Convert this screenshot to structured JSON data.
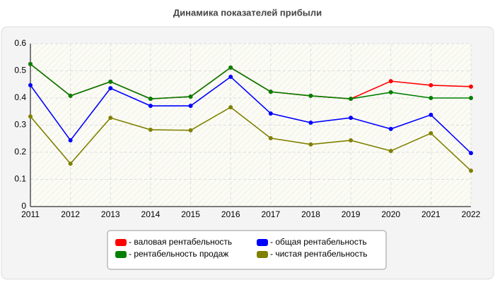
{
  "chart_data": {
    "type": "line",
    "title": "Динамика показателей прибыли",
    "x": [
      2011,
      2012,
      2013,
      2014,
      2015,
      2016,
      2017,
      2018,
      2019,
      2020,
      2021,
      2022
    ],
    "series": [
      {
        "name": "- валовая рентабельность",
        "color": "#ff0000",
        "values": [
          0.525,
          0.408,
          0.46,
          0.397,
          0.405,
          0.512,
          0.423,
          0.408,
          0.397,
          0.462,
          0.447,
          0.442
        ]
      },
      {
        "name": "- рентабельность продаж",
        "color": "#008000",
        "values": [
          0.525,
          0.408,
          0.46,
          0.397,
          0.405,
          0.512,
          0.423,
          0.408,
          0.397,
          0.421,
          0.4,
          0.4
        ]
      },
      {
        "name": "- общая рентабельность",
        "color": "#0000ff",
        "values": [
          0.447,
          0.244,
          0.436,
          0.371,
          0.371,
          0.478,
          0.343,
          0.309,
          0.327,
          0.286,
          0.338,
          0.197
        ]
      },
      {
        "name": "- чистая рентабельность",
        "color": "#808000",
        "values": [
          0.332,
          0.158,
          0.327,
          0.283,
          0.281,
          0.366,
          0.252,
          0.229,
          0.244,
          0.205,
          0.27,
          0.132
        ]
      }
    ],
    "xlim": [
      2011,
      2022
    ],
    "xticks": [
      2011,
      2012,
      2013,
      2014,
      2015,
      2016,
      2017,
      2018,
      2019,
      2020,
      2021,
      2022
    ],
    "ylim": [
      0,
      0.6
    ],
    "yticks": [
      0,
      0.1,
      0.2,
      0.3,
      0.4,
      0.5,
      0.6
    ],
    "grid": true
  }
}
